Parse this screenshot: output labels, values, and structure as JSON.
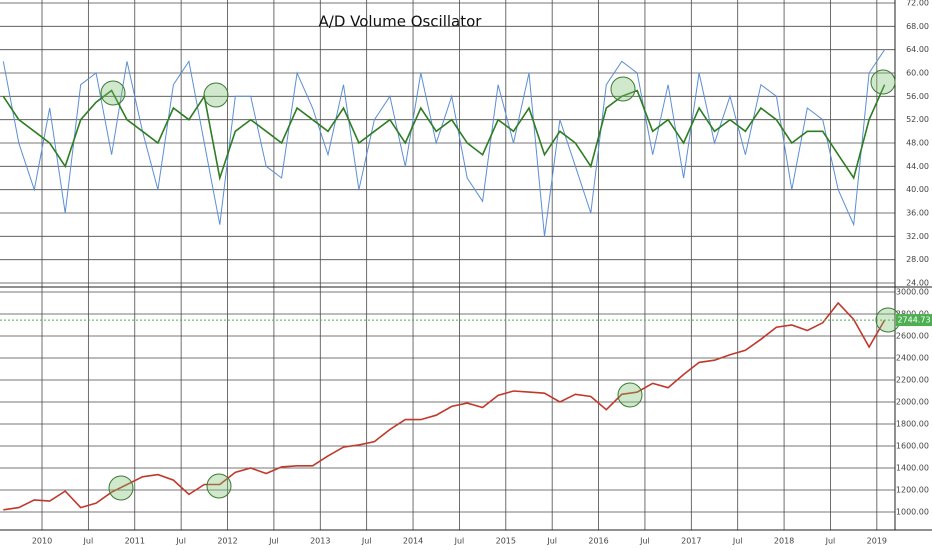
{
  "chart_data": [
    {
      "type": "line",
      "title": "A/D Volume Oscillator",
      "x": [
        "2009-08",
        "2009-10",
        "2009-12",
        "2010-02",
        "2010-04",
        "2010-06",
        "2010-08",
        "2010-10",
        "2010-12",
        "2011-02",
        "2011-04",
        "2011-06",
        "2011-08",
        "2011-10",
        "2011-12",
        "2012-02",
        "2012-04",
        "2012-06",
        "2012-08",
        "2012-10",
        "2012-12",
        "2013-02",
        "2013-04",
        "2013-06",
        "2013-08",
        "2013-10",
        "2013-12",
        "2014-02",
        "2014-04",
        "2014-06",
        "2014-08",
        "2014-10",
        "2014-12",
        "2015-02",
        "2015-04",
        "2015-06",
        "2015-08",
        "2015-10",
        "2015-12",
        "2016-02",
        "2016-04",
        "2016-06",
        "2016-08",
        "2016-10",
        "2016-12",
        "2017-02",
        "2017-04",
        "2017-06",
        "2017-08",
        "2017-10",
        "2017-12",
        "2018-02",
        "2018-04",
        "2018-06",
        "2018-08",
        "2018-10",
        "2018-12",
        "2019-02"
      ],
      "series": [
        {
          "color": "#5b8fd6",
          "values": [
            62,
            48,
            40,
            54,
            36,
            58,
            60,
            46,
            62,
            50,
            40,
            58,
            62,
            48,
            34,
            56,
            56,
            44,
            42,
            60,
            54,
            46,
            58,
            40,
            52,
            56,
            44,
            60,
            48,
            56,
            42,
            38,
            58,
            48,
            60,
            32,
            52,
            44,
            36,
            58,
            62,
            60,
            46,
            58,
            42,
            60,
            48,
            56,
            46,
            58,
            56,
            40,
            54,
            52,
            40,
            34,
            60,
            64
          ]
        },
        {
          "color": "#2e7d22",
          "values": [
            56,
            52,
            50,
            48,
            44,
            52,
            55,
            57,
            52,
            50,
            48,
            54,
            52,
            56,
            42,
            50,
            52,
            50,
            48,
            54,
            52,
            50,
            54,
            48,
            50,
            52,
            48,
            54,
            50,
            52,
            48,
            46,
            52,
            50,
            54,
            46,
            50,
            48,
            44,
            54,
            56,
            57,
            50,
            52,
            48,
            54,
            50,
            52,
            50,
            54,
            52,
            48,
            50,
            50,
            46,
            42,
            52,
            58
          ]
        }
      ],
      "ylim": [
        24,
        72
      ],
      "yticks": [
        {
          "value": 24,
          "label": "24.00"
        },
        {
          "value": 28,
          "label": "28.00"
        },
        {
          "value": 32,
          "label": "32.00"
        },
        {
          "value": 36,
          "label": "36.00"
        },
        {
          "value": 40,
          "label": "40.00"
        },
        {
          "value": 44,
          "label": "44.00"
        },
        {
          "value": 48,
          "label": "48.00"
        },
        {
          "value": 52,
          "label": "52.00"
        },
        {
          "value": 56,
          "label": "56.00"
        },
        {
          "value": 60,
          "label": "60.00"
        },
        {
          "value": 64,
          "label": "64.00"
        },
        {
          "value": 68,
          "label": "68.00"
        },
        {
          "value": 72,
          "label": "72.00"
        }
      ],
      "grid": true
    },
    {
      "type": "line",
      "x": [
        "2009-08",
        "2009-10",
        "2009-12",
        "2010-02",
        "2010-04",
        "2010-06",
        "2010-08",
        "2010-10",
        "2010-12",
        "2011-02",
        "2011-04",
        "2011-06",
        "2011-08",
        "2011-10",
        "2011-12",
        "2012-02",
        "2012-04",
        "2012-06",
        "2012-08",
        "2012-10",
        "2012-12",
        "2013-02",
        "2013-04",
        "2013-06",
        "2013-08",
        "2013-10",
        "2013-12",
        "2014-02",
        "2014-04",
        "2014-06",
        "2014-08",
        "2014-10",
        "2014-12",
        "2015-02",
        "2015-04",
        "2015-06",
        "2015-08",
        "2015-10",
        "2015-12",
        "2016-02",
        "2016-04",
        "2016-06",
        "2016-08",
        "2016-10",
        "2016-12",
        "2017-02",
        "2017-04",
        "2017-06",
        "2017-08",
        "2017-10",
        "2017-12",
        "2018-02",
        "2018-04",
        "2018-06",
        "2018-08",
        "2018-10",
        "2018-12",
        "2019-02"
      ],
      "series": [
        {
          "color": "#c0392b",
          "values": [
            1020,
            1040,
            1110,
            1100,
            1190,
            1040,
            1080,
            1180,
            1250,
            1320,
            1340,
            1290,
            1160,
            1250,
            1250,
            1360,
            1400,
            1350,
            1410,
            1420,
            1420,
            1510,
            1590,
            1610,
            1640,
            1750,
            1840,
            1840,
            1880,
            1960,
            1990,
            1950,
            2060,
            2100,
            2090,
            2080,
            2000,
            2070,
            2050,
            1930,
            2070,
            2090,
            2170,
            2130,
            2250,
            2360,
            2380,
            2430,
            2470,
            2570,
            2680,
            2700,
            2650,
            2720,
            2900,
            2750,
            2500,
            2744.73
          ]
        }
      ],
      "ylim": [
        1000,
        3000
      ],
      "yticks": [
        {
          "value": 1000,
          "label": "1000.00"
        },
        {
          "value": 1200,
          "label": "1200.00"
        },
        {
          "value": 1400,
          "label": "1400.00"
        },
        {
          "value": 1600,
          "label": "1600.00"
        },
        {
          "value": 1800,
          "label": "1800.00"
        },
        {
          "value": 2000,
          "label": "2000.00"
        },
        {
          "value": 2200,
          "label": "2200.00"
        },
        {
          "value": 2400,
          "label": "2400.00"
        },
        {
          "value": 2600,
          "label": "2600.00"
        },
        {
          "value": 2800,
          "label": "2800.00"
        },
        {
          "value": 3000,
          "label": "3000.00"
        }
      ],
      "xticks": [
        {
          "value": "2010-01",
          "label": "2010"
        },
        {
          "value": "2010-07",
          "label": "Jul"
        },
        {
          "value": "2011-01",
          "label": "2011"
        },
        {
          "value": "2011-07",
          "label": "Jul"
        },
        {
          "value": "2012-01",
          "label": "2012"
        },
        {
          "value": "2012-07",
          "label": "Jul"
        },
        {
          "value": "2013-01",
          "label": "2013"
        },
        {
          "value": "2013-07",
          "label": "Jul"
        },
        {
          "value": "2014-01",
          "label": "2014"
        },
        {
          "value": "2014-07",
          "label": "Jul"
        },
        {
          "value": "2015-01",
          "label": "2015"
        },
        {
          "value": "2015-07",
          "label": "Jul"
        },
        {
          "value": "2016-01",
          "label": "2016"
        },
        {
          "value": "2016-07",
          "label": "Jul"
        },
        {
          "value": "2017-01",
          "label": "2017"
        },
        {
          "value": "2017-07",
          "label": "Jul"
        },
        {
          "value": "2018-01",
          "label": "2018"
        },
        {
          "value": "2018-07",
          "label": "Jul"
        },
        {
          "value": "2019-01",
          "label": "2019"
        }
      ],
      "grid": true
    }
  ]
}
